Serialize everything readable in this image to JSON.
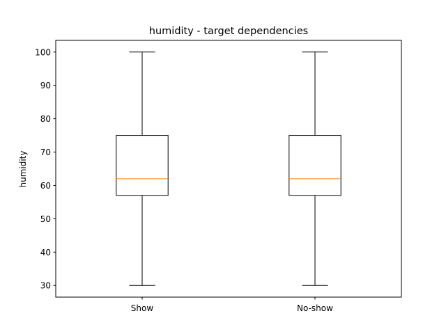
{
  "chart_data": {
    "type": "box",
    "title": "humidity - target dependencies",
    "xlabel": "",
    "ylabel": "humidity",
    "ylim": [
      26.5,
      103.5
    ],
    "yticks": [
      30,
      40,
      50,
      60,
      70,
      80,
      90,
      100
    ],
    "ytick_labels": [
      "30",
      "40",
      "50",
      "60",
      "70",
      "80",
      "90",
      "100"
    ],
    "categories": [
      "Show",
      "No-show"
    ],
    "boxes": [
      {
        "category": "Show",
        "whisker_low": 30,
        "q1": 57,
        "median": 62,
        "q3": 75,
        "whisker_high": 100
      },
      {
        "category": "No-show",
        "whisker_low": 30,
        "q1": 57,
        "median": 62,
        "q3": 75,
        "whisker_high": 100
      }
    ],
    "grid": false,
    "colors": {
      "box": "#000000",
      "median": "#ff7f0e"
    }
  }
}
